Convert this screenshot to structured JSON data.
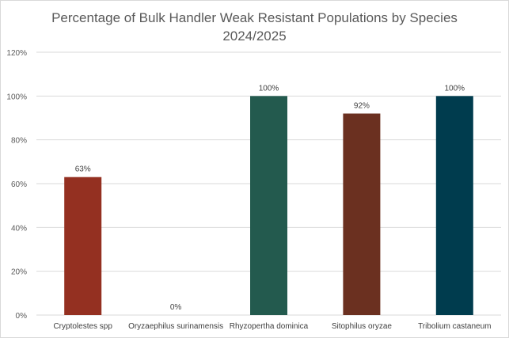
{
  "chart_data": {
    "type": "bar",
    "title": "Percentage of Bulk Handler Weak Resistant Populations by Species",
    "subtitle": "2024/2025",
    "categories": [
      "Cryptolestes spp",
      "Oryzaephilus surinamensis",
      "Rhyzopertha dominica",
      "Sitophilus oryzae",
      "Tribolium castaneum"
    ],
    "values": [
      63,
      0,
      100,
      92,
      100
    ],
    "data_labels": [
      "63%",
      "0%",
      "100%",
      "92%",
      "100%"
    ],
    "colors": [
      "#943021",
      "#943021",
      "#235A4E",
      "#6B3020",
      "#003C4E"
    ],
    "xlabel": "",
    "ylabel": "",
    "ylim": [
      0,
      120
    ],
    "yticks": [
      0,
      20,
      40,
      60,
      80,
      100,
      120
    ],
    "ytick_labels": [
      "0%",
      "20%",
      "40%",
      "60%",
      "80%",
      "100%",
      "120%"
    ],
    "grid": true,
    "legend": "none"
  }
}
